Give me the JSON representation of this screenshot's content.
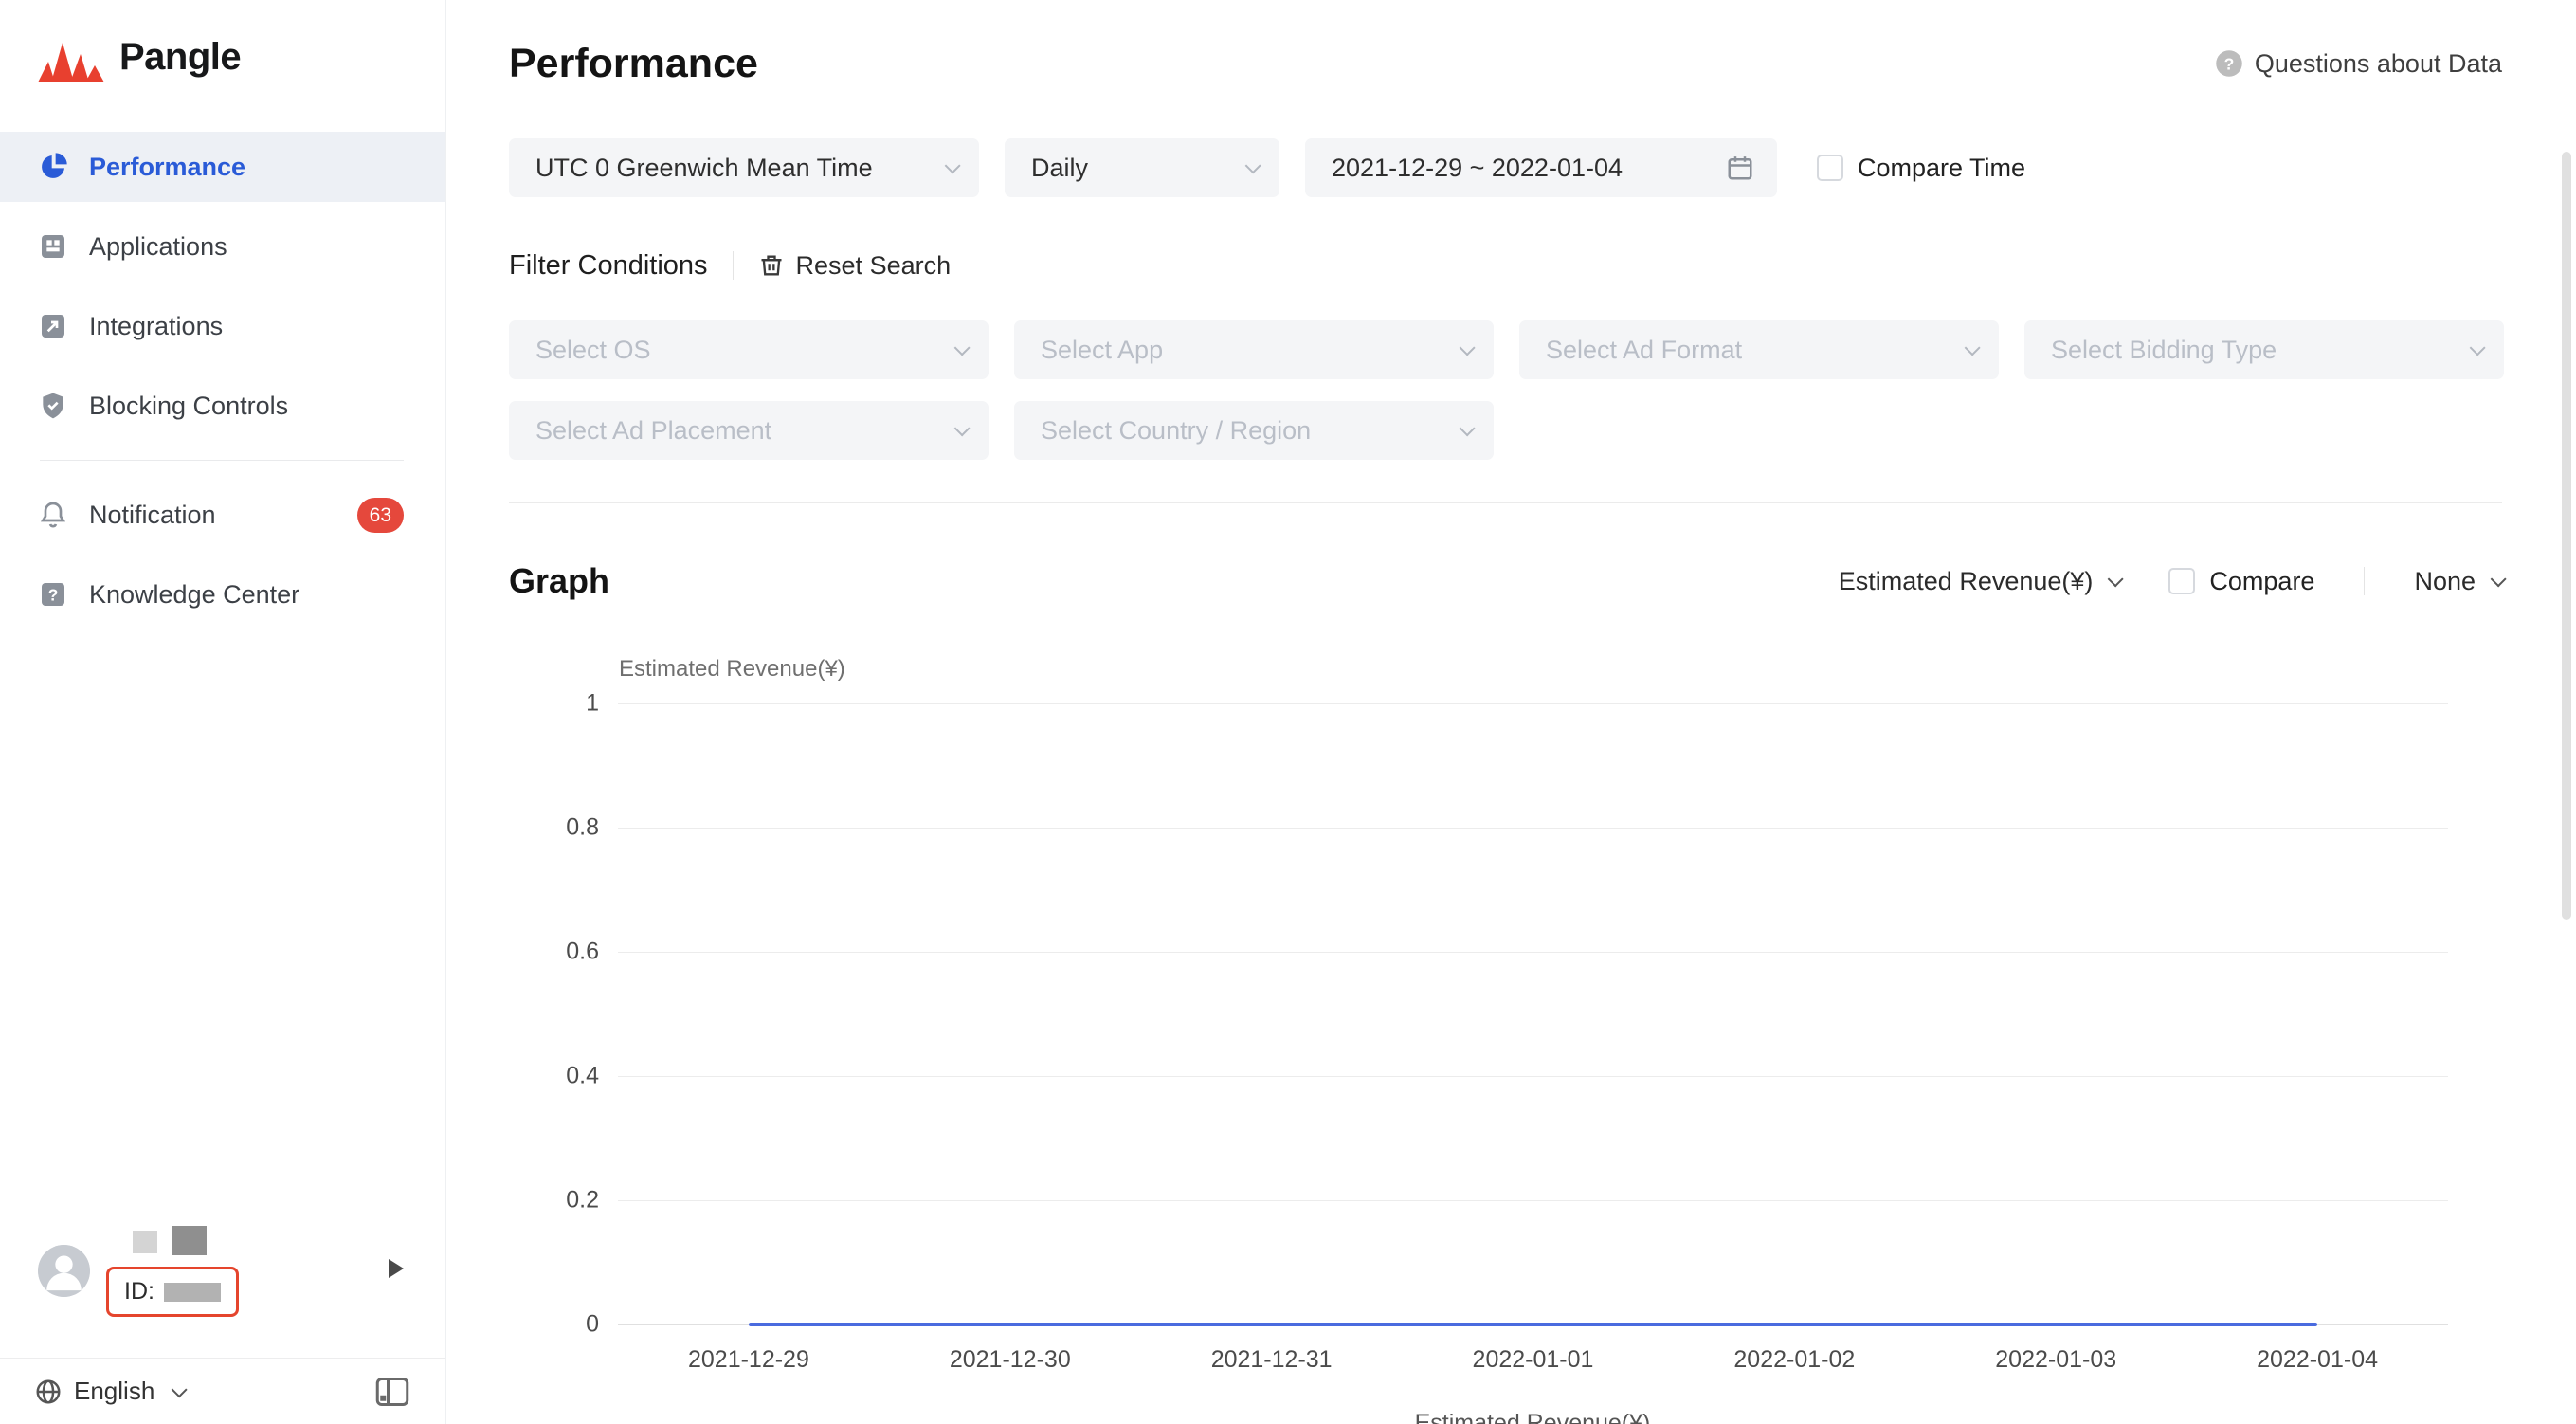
{
  "brand": {
    "name": "Pangle"
  },
  "sidebar": {
    "items": [
      {
        "label": "Performance"
      },
      {
        "label": "Applications"
      },
      {
        "label": "Integrations"
      },
      {
        "label": "Blocking Controls"
      },
      {
        "label": "Notification",
        "badge": "63"
      },
      {
        "label": "Knowledge Center"
      }
    ],
    "profile": {
      "id_label": "ID:"
    },
    "language": {
      "label": "English"
    }
  },
  "header": {
    "title": "Performance",
    "help_link": "Questions about Data"
  },
  "filters": {
    "timezone": "UTC 0 Greenwich Mean Time",
    "granularity": "Daily",
    "date_range": "2021-12-29 ~ 2022-01-04",
    "compare_time_label": "Compare Time",
    "conditions_label": "Filter Conditions",
    "reset_label": "Reset Search",
    "selects": [
      {
        "placeholder": "Select OS"
      },
      {
        "placeholder": "Select App"
      },
      {
        "placeholder": "Select Ad Format"
      },
      {
        "placeholder": "Select Bidding Type"
      },
      {
        "placeholder": "Select Ad Placement"
      },
      {
        "placeholder": "Select Country / Region"
      }
    ]
  },
  "graph": {
    "section_title": "Graph",
    "metric_selector": "Estimated Revenue(¥)",
    "compare_label": "Compare",
    "dimension_selector": "None"
  },
  "chart_data": {
    "type": "line",
    "title": "",
    "ylabel": "Estimated Revenue(¥)",
    "xlabel": "",
    "x": [
      "2021-12-29",
      "2021-12-30",
      "2021-12-31",
      "2022-01-01",
      "2022-01-02",
      "2022-01-03",
      "2022-01-04"
    ],
    "series": [
      {
        "name": "Estimated Revenue(¥)",
        "values": [
          0,
          0,
          0,
          0,
          0,
          0,
          0
        ]
      }
    ],
    "ylim": [
      0,
      1
    ],
    "yticks": [
      0,
      0.2,
      0.4,
      0.6,
      0.8,
      1
    ],
    "grid": true,
    "legend_position": "bottom",
    "line_color": "#4a6bdf"
  },
  "colors": {
    "accent_blue": "#2a5bd7",
    "brand_red": "#e8402f",
    "badge_red": "#e5483c",
    "id_outline_red": "#e5452d",
    "line_blue": "#4a6bdf",
    "placeholder_gray": "#b9bec7"
  }
}
